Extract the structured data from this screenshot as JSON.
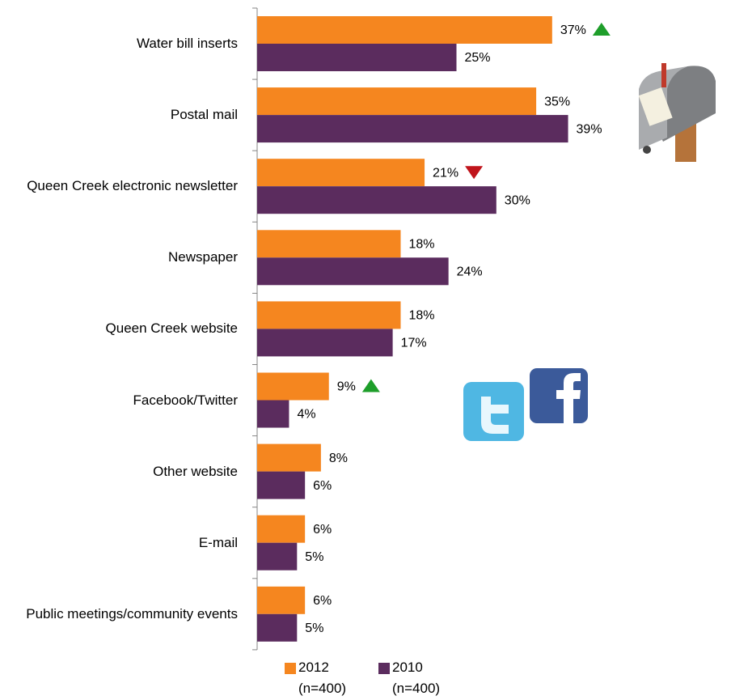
{
  "chart_data": {
    "type": "hbar",
    "categories": [
      "Water bill inserts",
      "Postal mail",
      "Queen Creek electronic newsletter",
      "Newspaper",
      "Queen Creek website",
      "Facebook/Twitter",
      "Other website",
      "E-mail",
      "Public meetings/community events"
    ],
    "series": [
      {
        "name": "2012 (n=400)",
        "color": "#f5861f",
        "values": [
          37,
          35,
          21,
          18,
          18,
          9,
          8,
          6,
          6
        ],
        "value_labels": [
          "37%",
          "35%",
          "21%",
          "18%",
          "18%",
          "9%",
          "8%",
          "6%",
          "6%"
        ],
        "significance": [
          "up",
          null,
          "down",
          null,
          null,
          "up",
          null,
          null,
          null
        ]
      },
      {
        "name": "2010 (n=400)",
        "color": "#5b2c5e",
        "values": [
          25,
          39,
          30,
          24,
          17,
          4,
          6,
          5,
          5
        ],
        "value_labels": [
          "25%",
          "39%",
          "30%",
          "24%",
          "17%",
          "4%",
          "6%",
          "5%",
          "5%"
        ]
      }
    ],
    "xlim": [
      0,
      50
    ]
  }
}
